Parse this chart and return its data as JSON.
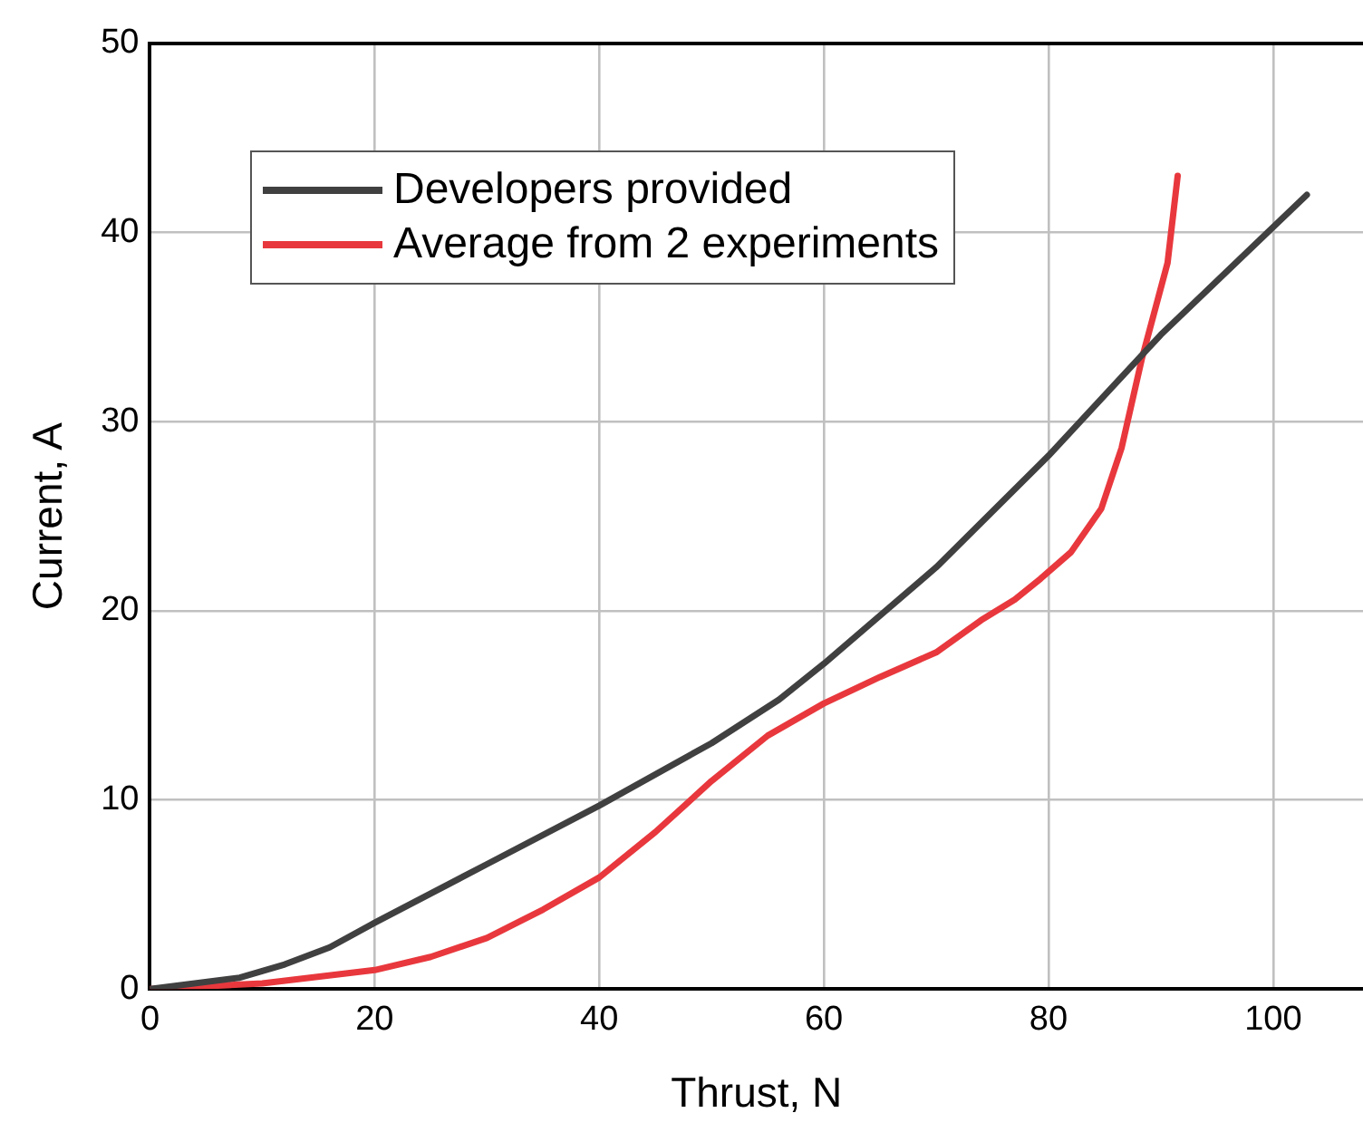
{
  "chart_data": {
    "type": "line",
    "xlabel": "Thrust, N",
    "ylabel": "Current, A",
    "xlim": [
      0,
      108
    ],
    "xticks": [
      0,
      20,
      40,
      60,
      80,
      100
    ],
    "ylim": [
      0,
      50
    ],
    "yticks": [
      0,
      10,
      20,
      30,
      40,
      50
    ],
    "grid": true,
    "legend": "top left",
    "marker": "none",
    "line_style": "solid",
    "series": [
      {
        "name": "Developers provided",
        "color": "#404040",
        "x": [
          0,
          8,
          12,
          16,
          20,
          30,
          40,
          50,
          56,
          60,
          70,
          80,
          90,
          103
        ],
        "values": [
          0,
          0.6,
          1.3,
          2.2,
          3.5,
          6.6,
          9.7,
          13,
          15.3,
          17.2,
          22.3,
          28.2,
          34.6,
          42
        ]
      },
      {
        "name": "Average from 2 experiments",
        "color": "#e8383d",
        "x": [
          0,
          10,
          20,
          25,
          30,
          35,
          40,
          45,
          50,
          55,
          60,
          65,
          70,
          74,
          77,
          79.3,
          82,
          84.7,
          86.5,
          88.3,
          90.6,
          91.5
        ],
        "values": [
          0,
          0.3,
          1,
          1.7,
          2.7,
          4.2,
          5.9,
          8.3,
          11,
          13.4,
          15.1,
          16.5,
          17.8,
          19.5,
          20.6,
          21.7,
          23.1,
          25.4,
          28.6,
          33.3,
          38.4,
          43
        ]
      }
    ]
  }
}
